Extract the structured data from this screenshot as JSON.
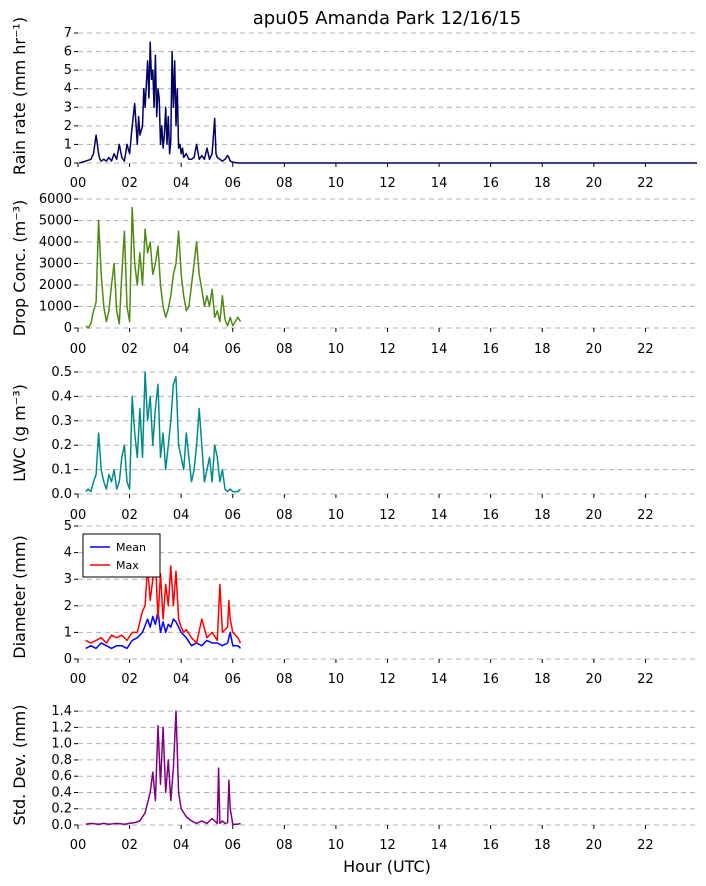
{
  "chart_data": {
    "title": "apu05 Amanda Park 12/16/15",
    "xlabel": "Hour (UTC)",
    "x_ticks": [
      "00",
      "02",
      "04",
      "06",
      "08",
      "10",
      "12",
      "14",
      "16",
      "18",
      "20",
      "22"
    ],
    "xlim": [
      0,
      24
    ],
    "panels": [
      {
        "type": "line",
        "ylabel": "Rain rate (mm hr⁻¹)",
        "ylim": [
          0,
          7
        ],
        "y_ticks": [
          "0",
          "1",
          "2",
          "3",
          "4",
          "5",
          "6",
          "7"
        ],
        "grid": true,
        "series": [
          {
            "color": "#000066",
            "extend_to_end": true,
            "x": [
              0.05,
              0.3,
              0.5,
              0.6,
              0.7,
              0.8,
              0.85,
              0.9,
              1.0,
              1.1,
              1.2,
              1.3,
              1.4,
              1.5,
              1.6,
              1.7,
              1.8,
              1.9,
              2.0,
              2.1,
              2.2,
              2.3,
              2.35,
              2.4,
              2.5,
              2.55,
              2.6,
              2.7,
              2.75,
              2.8,
              2.85,
              2.9,
              2.95,
              3.0,
              3.05,
              3.1,
              3.15,
              3.2,
              3.25,
              3.3,
              3.35,
              3.4,
              3.45,
              3.5,
              3.55,
              3.6,
              3.65,
              3.7,
              3.75,
              3.8,
              3.85,
              3.9,
              3.95,
              4.0,
              4.05,
              4.1,
              4.2,
              4.3,
              4.4,
              4.5,
              4.6,
              4.7,
              4.8,
              4.9,
              5.0,
              5.1,
              5.2,
              5.3,
              5.35,
              5.4,
              5.5,
              5.6,
              5.7,
              5.8,
              5.85,
              5.9,
              6.0,
              6.2,
              6.3
            ],
            "y": [
              0,
              0.1,
              0.2,
              0.5,
              1.5,
              0.5,
              0.2,
              0.1,
              0.2,
              0.1,
              0.3,
              0.1,
              0.5,
              0.2,
              1.0,
              0.3,
              0.1,
              1.0,
              0.5,
              2.0,
              3.2,
              1.0,
              2.5,
              1.5,
              2.0,
              4.0,
              3.0,
              5.5,
              3.5,
              6.5,
              4.5,
              5.0,
              3.0,
              5.8,
              2.5,
              4.0,
              3.5,
              1.0,
              2.0,
              0.8,
              1.5,
              3.0,
              1.0,
              2.5,
              0.5,
              1.2,
              6.0,
              3.0,
              5.5,
              2.0,
              4.0,
              0.8,
              1.0,
              0.5,
              0.8,
              0.3,
              0.5,
              0.2,
              0.2,
              0.3,
              1.0,
              0.2,
              0.4,
              0.2,
              0.8,
              0.2,
              0.5,
              2.4,
              0.5,
              0.3,
              0.2,
              0.1,
              0.2,
              0.4,
              0.3,
              0.1,
              0.05,
              0,
              0
            ]
          }
        ]
      },
      {
        "type": "line",
        "ylabel": "Drop Conc. (m⁻³)",
        "ylim": [
          0,
          6000
        ],
        "y_ticks": [
          "0",
          "1000",
          "2000",
          "3000",
          "4000",
          "5000",
          "6000"
        ],
        "grid": true,
        "series": [
          {
            "color": "#4f8a10",
            "x": [
              0.3,
              0.4,
              0.5,
              0.6,
              0.7,
              0.8,
              0.9,
              1.0,
              1.1,
              1.2,
              1.3,
              1.4,
              1.5,
              1.6,
              1.7,
              1.8,
              1.9,
              2.0,
              2.1,
              2.2,
              2.3,
              2.4,
              2.5,
              2.6,
              2.7,
              2.8,
              2.9,
              3.0,
              3.1,
              3.2,
              3.3,
              3.4,
              3.5,
              3.6,
              3.7,
              3.8,
              3.9,
              4.0,
              4.1,
              4.2,
              4.3,
              4.4,
              4.5,
              4.6,
              4.7,
              4.8,
              4.9,
              5.0,
              5.1,
              5.2,
              5.3,
              5.4,
              5.5,
              5.6,
              5.7,
              5.8,
              5.9,
              6.0,
              6.2,
              6.3
            ],
            "y": [
              100,
              0,
              200,
              800,
              1200,
              5000,
              2500,
              1000,
              300,
              800,
              2000,
              3000,
              800,
              200,
              2500,
              4500,
              1000,
              300,
              5600,
              3000,
              2000,
              3500,
              2000,
              4600,
              3500,
              4000,
              2500,
              3000,
              3800,
              2000,
              1000,
              500,
              900,
              1500,
              2500,
              3000,
              4500,
              2500,
              1500,
              800,
              1000,
              2000,
              3000,
              4000,
              2500,
              1800,
              1000,
              1500,
              1000,
              1800,
              500,
              800,
              300,
              1500,
              400,
              100,
              500,
              100,
              500,
              300
            ]
          }
        ]
      },
      {
        "type": "line",
        "ylabel": "LWC (g m⁻³)",
        "ylim": [
          0,
          0.5
        ],
        "y_ticks": [
          "0.0",
          "0.1",
          "0.2",
          "0.3",
          "0.4",
          "0.5"
        ],
        "grid": true,
        "series": [
          {
            "color": "#008b8b",
            "x": [
              0.3,
              0.4,
              0.5,
              0.6,
              0.7,
              0.8,
              0.9,
              1.0,
              1.1,
              1.2,
              1.3,
              1.4,
              1.5,
              1.6,
              1.7,
              1.8,
              1.9,
              2.0,
              2.1,
              2.2,
              2.3,
              2.4,
              2.5,
              2.6,
              2.7,
              2.8,
              2.9,
              3.0,
              3.1,
              3.2,
              3.3,
              3.4,
              3.5,
              3.6,
              3.7,
              3.8,
              3.9,
              4.0,
              4.1,
              4.2,
              4.3,
              4.4,
              4.5,
              4.6,
              4.7,
              4.8,
              4.9,
              5.0,
              5.1,
              5.2,
              5.3,
              5.4,
              5.5,
              5.6,
              5.7,
              5.8,
              5.9,
              6.0,
              6.2,
              6.3
            ],
            "y": [
              0.01,
              0.02,
              0.01,
              0.05,
              0.08,
              0.25,
              0.1,
              0.05,
              0.02,
              0.08,
              0.05,
              0.1,
              0.02,
              0.05,
              0.15,
              0.2,
              0.05,
              0.02,
              0.4,
              0.25,
              0.15,
              0.35,
              0.15,
              0.5,
              0.3,
              0.4,
              0.2,
              0.35,
              0.45,
              0.15,
              0.25,
              0.1,
              0.2,
              0.3,
              0.45,
              0.48,
              0.2,
              0.15,
              0.1,
              0.25,
              0.15,
              0.05,
              0.1,
              0.2,
              0.35,
              0.2,
              0.05,
              0.1,
              0.15,
              0.05,
              0.2,
              0.15,
              0.05,
              0.1,
              0.02,
              0.01,
              0.02,
              0.01,
              0.01,
              0.02
            ]
          }
        ]
      },
      {
        "type": "line",
        "ylabel": "Diameter (mm)",
        "ylim": [
          0,
          5
        ],
        "y_ticks": [
          "0",
          "1",
          "2",
          "3",
          "4",
          "5"
        ],
        "grid": true,
        "legend": {
          "position": "upper-left",
          "entries": [
            "Mean",
            "Max"
          ]
        },
        "series": [
          {
            "name": "Mean",
            "color": "#0000ff",
            "x": [
              0.3,
              0.5,
              0.7,
              0.9,
              1.1,
              1.3,
              1.5,
              1.7,
              1.9,
              2.1,
              2.3,
              2.5,
              2.7,
              2.8,
              2.9,
              3.0,
              3.1,
              3.2,
              3.3,
              3.4,
              3.5,
              3.6,
              3.7,
              3.8,
              3.9,
              4.0,
              4.2,
              4.4,
              4.6,
              4.8,
              5.0,
              5.2,
              5.4,
              5.6,
              5.8,
              5.85,
              5.9,
              6.0,
              6.2,
              6.3
            ],
            "y": [
              0.4,
              0.5,
              0.4,
              0.6,
              0.5,
              0.4,
              0.5,
              0.5,
              0.4,
              0.7,
              0.8,
              1.0,
              1.5,
              1.2,
              1.6,
              1.3,
              1.8,
              1.0,
              1.4,
              1.0,
              1.3,
              1.2,
              1.5,
              1.4,
              1.2,
              1.0,
              0.8,
              0.5,
              0.6,
              0.5,
              0.7,
              0.6,
              0.6,
              0.5,
              0.6,
              0.8,
              1.0,
              0.5,
              0.5,
              0.4
            ]
          },
          {
            "name": "Max",
            "color": "#ff0000",
            "x": [
              0.3,
              0.5,
              0.7,
              0.9,
              1.1,
              1.3,
              1.5,
              1.7,
              1.9,
              2.1,
              2.3,
              2.5,
              2.6,
              2.7,
              2.8,
              2.9,
              3.0,
              3.1,
              3.2,
              3.3,
              3.4,
              3.5,
              3.6,
              3.7,
              3.8,
              3.9,
              4.0,
              4.1,
              4.2,
              4.4,
              4.6,
              4.8,
              5.0,
              5.2,
              5.4,
              5.5,
              5.6,
              5.8,
              5.85,
              5.9,
              6.0,
              6.2,
              6.3
            ],
            "y": [
              0.7,
              0.6,
              0.7,
              0.8,
              0.6,
              0.9,
              0.8,
              0.9,
              0.7,
              1.0,
              1.0,
              1.8,
              2.0,
              3.5,
              2.2,
              3.0,
              3.8,
              1.5,
              3.2,
              1.5,
              2.8,
              2.0,
              3.5,
              2.0,
              3.3,
              1.5,
              1.2,
              1.0,
              1.1,
              0.8,
              0.6,
              1.5,
              0.8,
              1.0,
              0.7,
              2.8,
              1.0,
              1.2,
              2.2,
              1.5,
              1.0,
              0.8,
              0.6
            ]
          }
        ]
      },
      {
        "type": "line",
        "ylabel": "Std. Dev. (mm)",
        "ylim": [
          0,
          1.5
        ],
        "y_ticks": [
          "0.0",
          "0.2",
          "0.4",
          "0.6",
          "0.8",
          "1.0",
          "1.2",
          "1.4"
        ],
        "grid": true,
        "series": [
          {
            "color": "#800080",
            "x": [
              0.3,
              0.5,
              0.8,
              1.0,
              1.2,
              1.5,
              1.8,
              2.0,
              2.2,
              2.4,
              2.6,
              2.8,
              2.9,
              3.0,
              3.1,
              3.2,
              3.3,
              3.4,
              3.5,
              3.6,
              3.7,
              3.8,
              3.9,
              4.0,
              4.2,
              4.4,
              4.6,
              4.8,
              5.0,
              5.2,
              5.3,
              5.4,
              5.45,
              5.5,
              5.6,
              5.7,
              5.8,
              5.85,
              5.9,
              6.0,
              6.2,
              6.3
            ],
            "y": [
              0.01,
              0.02,
              0.01,
              0.02,
              0.01,
              0.02,
              0.01,
              0.02,
              0.03,
              0.05,
              0.15,
              0.4,
              0.65,
              0.3,
              1.22,
              0.5,
              1.2,
              0.4,
              0.8,
              0.3,
              0.7,
              1.4,
              0.4,
              0.2,
              0.1,
              0.05,
              0.02,
              0.05,
              0.02,
              0.08,
              0.05,
              0.02,
              0.7,
              0.02,
              0.05,
              0.02,
              0.03,
              0.55,
              0.2,
              0.01,
              0.01,
              0.02
            ]
          }
        ]
      }
    ]
  }
}
